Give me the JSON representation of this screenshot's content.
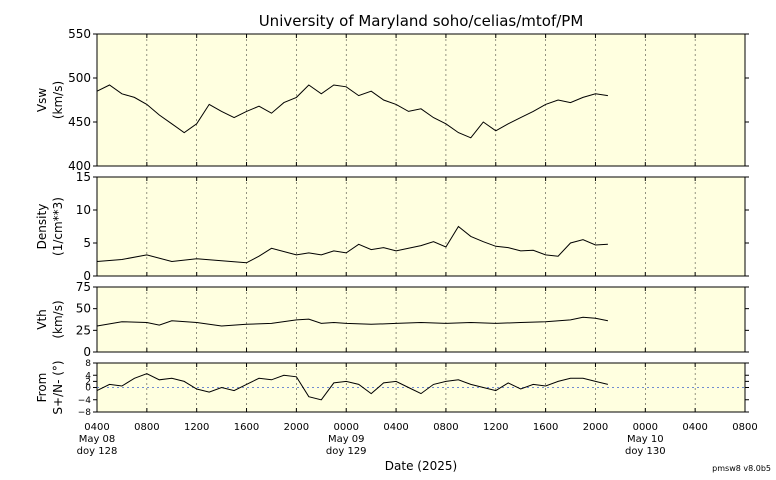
{
  "title": "University of Maryland  soho/celias/mtof/PM",
  "footer_label": "pmsw8 v8.0b5",
  "xlabel": "Date (2025)",
  "colors": {
    "panel_bg": "#ffffe0",
    "line": "#000000",
    "grid": "#000000"
  },
  "x_ticks": [
    "0400",
    "0800",
    "1200",
    "1600",
    "2000",
    "0000",
    "0400",
    "0800",
    "1200",
    "1600",
    "2000",
    "0000",
    "0400",
    "0800"
  ],
  "date_labels": [
    {
      "tick": 5,
      "line1": "May 09",
      "line2": "doy 129"
    },
    {
      "tick": 11,
      "line1": "May 10",
      "line2": "doy 130"
    },
    {
      "tick": 0,
      "line1": "May 08",
      "line2": "doy 128"
    }
  ],
  "chart_data": [
    {
      "type": "line",
      "panel": "vsw",
      "ylabel_line1": "Vsw",
      "ylabel_line2": "(km/s)",
      "ylim": [
        400,
        550
      ],
      "yticks": [
        "400",
        "450",
        "500",
        "550"
      ],
      "x_unit": "hours after May 08 04:00",
      "x_range": [
        0,
        52
      ],
      "points": [
        [
          0,
          485
        ],
        [
          1,
          492
        ],
        [
          2,
          482
        ],
        [
          3,
          478
        ],
        [
          4,
          470
        ],
        [
          5,
          458
        ],
        [
          6,
          448
        ],
        [
          7,
          438
        ],
        [
          8,
          448
        ],
        [
          9,
          470
        ],
        [
          10,
          462
        ],
        [
          11,
          455
        ],
        [
          12,
          462
        ],
        [
          13,
          468
        ],
        [
          14,
          460
        ],
        [
          15,
          472
        ],
        [
          16,
          478
        ],
        [
          17,
          492
        ],
        [
          18,
          482
        ],
        [
          19,
          492
        ],
        [
          20,
          490
        ],
        [
          21,
          480
        ],
        [
          22,
          485
        ],
        [
          23,
          475
        ],
        [
          24,
          470
        ],
        [
          25,
          462
        ],
        [
          26,
          465
        ],
        [
          27,
          455
        ],
        [
          28,
          448
        ],
        [
          29,
          438
        ],
        [
          30,
          432
        ],
        [
          31,
          450
        ],
        [
          32,
          440
        ],
        [
          33,
          448
        ],
        [
          34,
          455
        ],
        [
          35,
          462
        ],
        [
          36,
          470
        ],
        [
          37,
          475
        ],
        [
          38,
          472
        ],
        [
          39,
          478
        ],
        [
          40,
          482
        ],
        [
          41,
          480
        ]
      ]
    },
    {
      "type": "line",
      "panel": "density",
      "ylabel_line1": "Density",
      "ylabel_line2": "(1/cm**3)",
      "ylim": [
        0,
        15
      ],
      "yticks": [
        "0",
        "5",
        "10",
        "15"
      ],
      "x_unit": "hours after May 08 04:00",
      "x_range": [
        0,
        52
      ],
      "points": [
        [
          0,
          2.2
        ],
        [
          2,
          2.5
        ],
        [
          4,
          3.2
        ],
        [
          6,
          2.2
        ],
        [
          8,
          2.6
        ],
        [
          10,
          2.3
        ],
        [
          12,
          2.0
        ],
        [
          13,
          3.0
        ],
        [
          14,
          4.2
        ],
        [
          16,
          3.2
        ],
        [
          17,
          3.5
        ],
        [
          18,
          3.2
        ],
        [
          19,
          3.8
        ],
        [
          20,
          3.5
        ],
        [
          21,
          4.8
        ],
        [
          22,
          4.0
        ],
        [
          23,
          4.3
        ],
        [
          24,
          3.8
        ],
        [
          25,
          4.2
        ],
        [
          26,
          4.6
        ],
        [
          27,
          5.2
        ],
        [
          28,
          4.4
        ],
        [
          29,
          7.5
        ],
        [
          30,
          6.0
        ],
        [
          31,
          5.2
        ],
        [
          32,
          4.5
        ],
        [
          33,
          4.3
        ],
        [
          34,
          3.8
        ],
        [
          35,
          3.9
        ],
        [
          36,
          3.2
        ],
        [
          37,
          3.0
        ],
        [
          38,
          5.0
        ],
        [
          39,
          5.5
        ],
        [
          40,
          4.7
        ],
        [
          41,
          4.8
        ]
      ]
    },
    {
      "type": "line",
      "panel": "vth",
      "ylabel_line1": "Vth",
      "ylabel_line2": "(km/s)",
      "ylim": [
        0,
        75
      ],
      "yticks": [
        "0",
        "25",
        "50",
        "75"
      ],
      "x_unit": "hours after May 08 04:00",
      "x_range": [
        0,
        52
      ],
      "points": [
        [
          0,
          30
        ],
        [
          2,
          35
        ],
        [
          4,
          34
        ],
        [
          5,
          31
        ],
        [
          6,
          36
        ],
        [
          8,
          34
        ],
        [
          10,
          30
        ],
        [
          12,
          32
        ],
        [
          14,
          33
        ],
        [
          16,
          37
        ],
        [
          17,
          38
        ],
        [
          18,
          33
        ],
        [
          19,
          34
        ],
        [
          20,
          33
        ],
        [
          22,
          32
        ],
        [
          24,
          33
        ],
        [
          26,
          34
        ],
        [
          28,
          33
        ],
        [
          30,
          34
        ],
        [
          32,
          33
        ],
        [
          34,
          34
        ],
        [
          36,
          35
        ],
        [
          38,
          37
        ],
        [
          39,
          40
        ],
        [
          40,
          39
        ],
        [
          41,
          36
        ]
      ]
    },
    {
      "type": "line",
      "panel": "from",
      "ylabel_line1": "From",
      "ylabel_line2": "S+/N- (°)",
      "ylim": [
        -8,
        8
      ],
      "yticks": [
        "8",
        "4",
        "2",
        "0",
        "−4",
        "−8"
      ],
      "ytick_values": [
        8,
        4,
        2,
        0,
        -4,
        -8
      ],
      "x_unit": "hours after May 08 04:00",
      "x_range": [
        0,
        52
      ],
      "points": [
        [
          0,
          -1
        ],
        [
          1,
          1
        ],
        [
          2,
          0.5
        ],
        [
          3,
          3
        ],
        [
          4,
          4.5
        ],
        [
          5,
          2.5
        ],
        [
          6,
          3
        ],
        [
          7,
          2
        ],
        [
          8,
          -0.5
        ],
        [
          9,
          -1.5
        ],
        [
          10,
          0
        ],
        [
          11,
          -1
        ],
        [
          12,
          1
        ],
        [
          13,
          3
        ],
        [
          14,
          2.5
        ],
        [
          15,
          4
        ],
        [
          16,
          3.5
        ],
        [
          17,
          -3
        ],
        [
          18,
          -4
        ],
        [
          19,
          1.5
        ],
        [
          20,
          2
        ],
        [
          21,
          1
        ],
        [
          22,
          -2
        ],
        [
          23,
          1.5
        ],
        [
          24,
          2
        ],
        [
          25,
          0
        ],
        [
          26,
          -2
        ],
        [
          27,
          1
        ],
        [
          28,
          2
        ],
        [
          29,
          2.5
        ],
        [
          30,
          1
        ],
        [
          31,
          0
        ],
        [
          32,
          -1
        ],
        [
          33,
          1.5
        ],
        [
          34,
          -0.5
        ],
        [
          35,
          1
        ],
        [
          36,
          0.5
        ],
        [
          37,
          2
        ],
        [
          38,
          3
        ],
        [
          39,
          3
        ],
        [
          40,
          2
        ],
        [
          41,
          1
        ]
      ]
    }
  ]
}
